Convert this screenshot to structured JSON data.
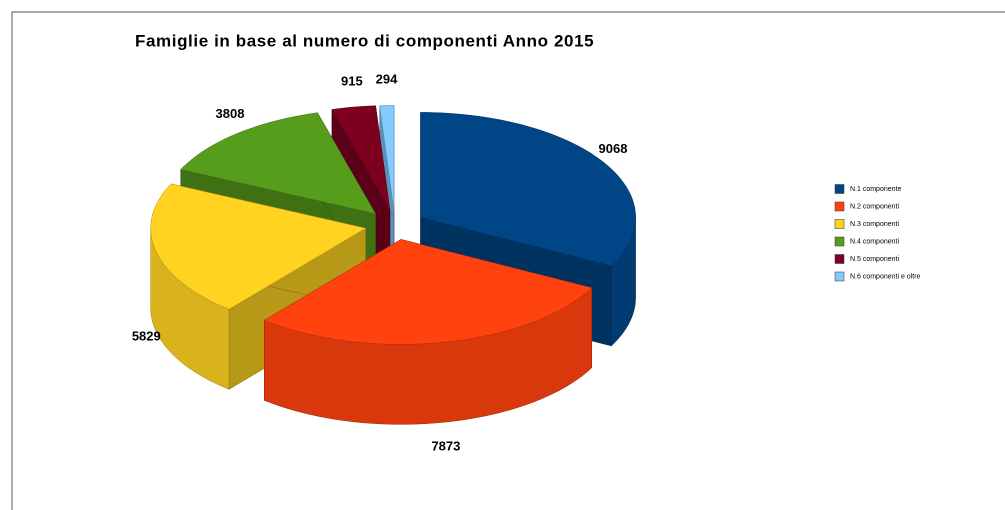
{
  "chart_data": {
    "type": "pie3d",
    "title": "Famiglie in base al numero di componenti Anno 2015",
    "categories": [
      "N.1 componente",
      "N.2 componenti",
      "N.3 componenti",
      "N.4 componenti",
      "N.5 componenti",
      "N.6 componenti e oltre"
    ],
    "values": [
      9068,
      7873,
      5829,
      3808,
      915,
      294
    ],
    "colors": [
      "#004586",
      "#ff420e",
      "#ffd320",
      "#579d1c",
      "#7e0021",
      "#83caff"
    ],
    "legend": "right"
  }
}
